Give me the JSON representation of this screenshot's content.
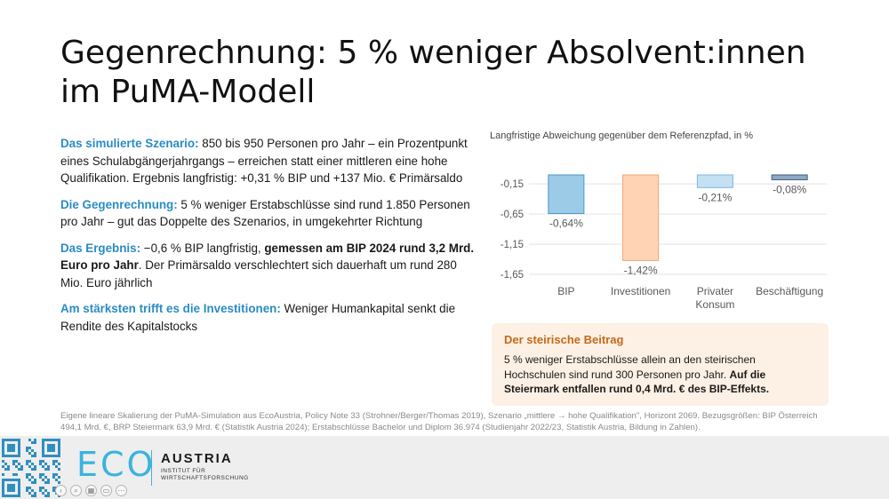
{
  "title": {
    "line1": "Gegenrechnung: 5 % weniger Absolvent:innen",
    "line2": "im PuMA-Modell"
  },
  "points": [
    {
      "label": "Das simulierte Szenario:",
      "text": " 850 bis 950 Personen pro Jahr – ein Prozentpunkt eines Schulabgängerjahrgangs – erreichen statt einer mittleren eine hohe Qualifikation. Ergebnis langfristig: +0,31 % BIP und +137 Mio. € Primärsaldo"
    },
    {
      "label": "Die Gegenrechnung:",
      "text": " 5 % weniger Erstabschlüsse sind rund 1.850 Personen pro Jahr – gut das Doppelte des Szenarios, in umgekehrter Richtung"
    },
    {
      "label": "Das Ergebnis:",
      "text": " −0,6 % BIP langfristig, ",
      "bold": "gemessen am BIP 2024 rund 3,2 Mrd. Euro pro Jahr",
      "text2": ". Der Primärsaldo verschlechtert sich dauerhaft um rund 280 Mio. Euro jährlich"
    },
    {
      "label": "Am stärksten trifft es die Investitionen:",
      "text": " Weniger Humankapital senkt die Rendite des Kapitalstocks"
    }
  ],
  "chart_data": {
    "type": "bar",
    "title": "Langfristige Abweichung gegenüber dem Referenzpfad, in %",
    "categories": [
      [
        "BIP"
      ],
      [
        "Investitionen"
      ],
      [
        "Privater",
        "Konsum"
      ],
      [
        "Beschäftigung"
      ]
    ],
    "values": [
      -0.64,
      -1.42,
      -0.21,
      -0.08
    ],
    "value_labels": [
      "-0,64%",
      "-1,42%",
      "-0,21%",
      "-0,08%"
    ],
    "yticks": [
      -0.15,
      -0.65,
      -1.15,
      -1.65
    ],
    "ytick_labels": [
      "-0,15",
      "-0,65",
      "-1,15",
      "-1,65"
    ],
    "ylim": [
      -1.65,
      0
    ],
    "grid": true,
    "colors": {
      "fill": [
        "#9ccbe8",
        "#ffd3b3",
        "#c4e0f3",
        "#8fa9c4"
      ],
      "stroke": [
        "#4a96c9",
        "#f0a66f",
        "#7bb7e0",
        "#3e5d7e"
      ]
    }
  },
  "box": {
    "title": "Der steirische Beitrag",
    "text": "5 % weniger Erstabschlüsse allein an den steirischen Hochschulen sind rund 300 Personen pro Jahr. ",
    "bold": "Auf die Steiermark entfallen rund 0,4 Mrd. € des BIP-Effekts."
  },
  "footnote": "Eigene lineare Skalierung der PuMA-Simulation aus EcoAustria, Policy Note 33 (Strohner/Berger/Thomas 2019), Szenario „mittlere → hohe Qualifikation\", Horizont 2069. Bezugsgrößen: BIP Österreich 494,1 Mrd. €, BRP Steiermark 63,9 Mrd. € (Statistik Austria 2024); Erstabschlüsse Bachelor und Diplom 36.974 (Studienjahr 2022/23, Statistik Austria, Bildung in Zahlen).",
  "footer": {
    "logo_eco": "ECO",
    "logo_austria": "AUSTRIA",
    "logo_sub1": "INSTITUT FÜR",
    "logo_sub2": "WIRTSCHAFTSFORSCHUNG",
    "qr_icon": "qr-code-icon",
    "accent": "#3bb3df"
  }
}
